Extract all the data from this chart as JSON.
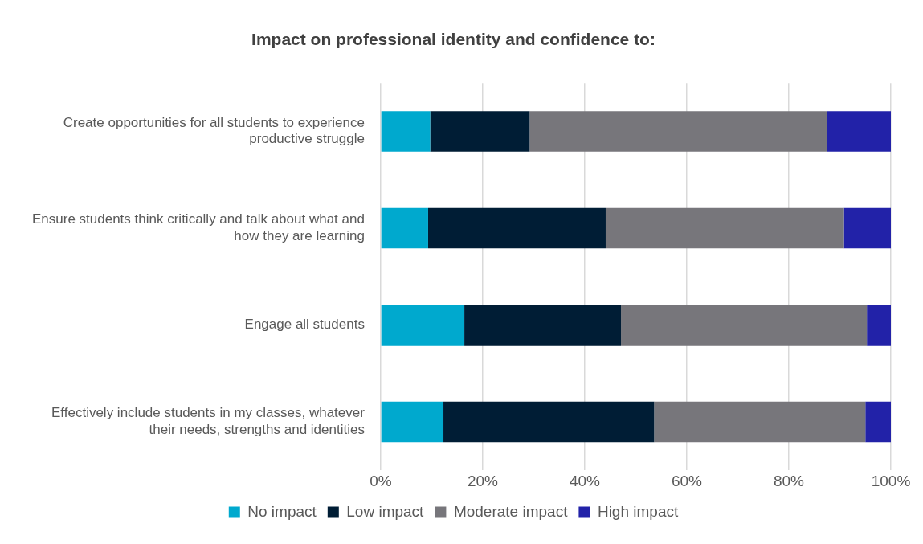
{
  "chart_data": {
    "type": "bar",
    "orientation": "horizontal",
    "stacked": true,
    "title": "Impact on professional identity and confidence to:",
    "categories": [
      "Create opportunities for all students to experience productive struggle",
      "Ensure students think critically and talk about what and how they are learning",
      "Engage all students",
      "Effectively include students in my classes, whatever their needs, strengths and identities"
    ],
    "series": [
      {
        "name": "No impact",
        "color": "#00a9ce",
        "values": [
          9.7,
          9.3,
          16.4,
          12.3
        ]
      },
      {
        "name": "Low impact",
        "color": "#001d35",
        "values": [
          19.5,
          34.8,
          30.7,
          41.3
        ]
      },
      {
        "name": "Moderate impact",
        "color": "#77767b",
        "values": [
          58.3,
          46.7,
          48.2,
          41.4
        ]
      },
      {
        "name": "High impact",
        "color": "#2222a8",
        "values": [
          12.5,
          9.2,
          4.7,
          5.0
        ]
      }
    ],
    "xlim": [
      0,
      100
    ],
    "xticks": [
      {
        "value": 0,
        "label": "0%"
      },
      {
        "value": 20,
        "label": "20%"
      },
      {
        "value": 40,
        "label": "40%"
      },
      {
        "value": 60,
        "label": "60%"
      },
      {
        "value": 80,
        "label": "80%"
      },
      {
        "value": 100,
        "label": "100%"
      }
    ],
    "grid": "x",
    "legend": "bottom"
  }
}
